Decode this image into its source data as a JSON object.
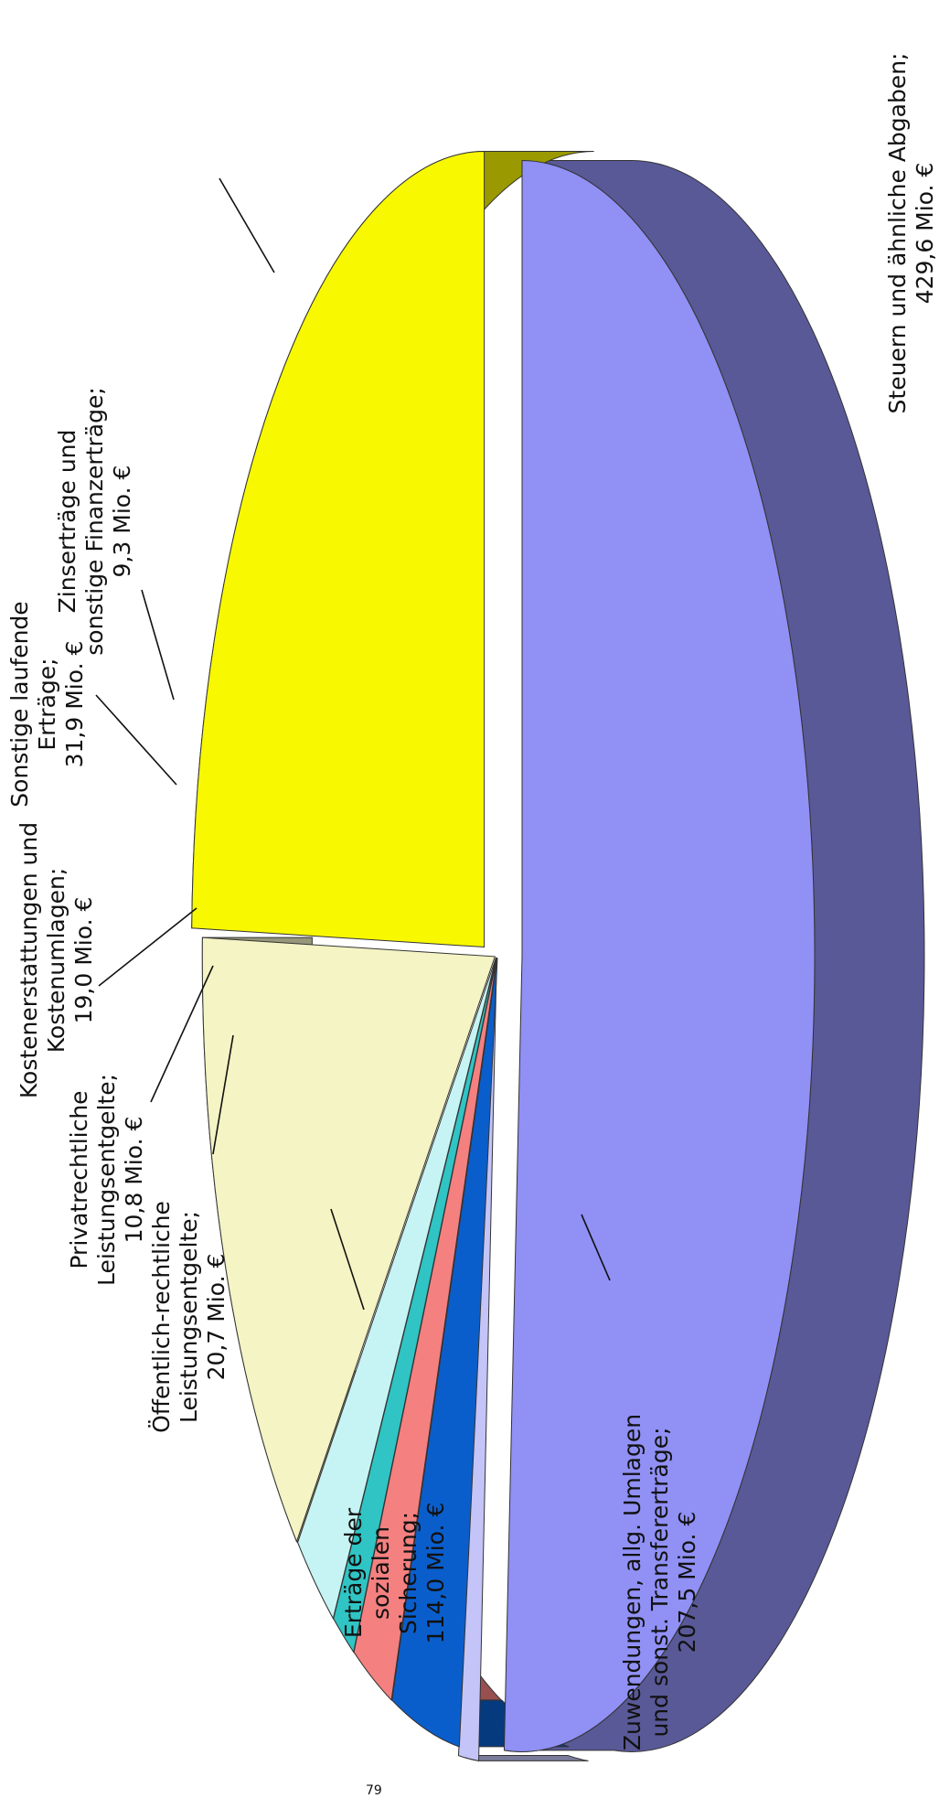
{
  "chart_data": {
    "type": "pie",
    "title": "",
    "unit": "Mio. €",
    "slices": [
      {
        "lines": [
          "Steuern und ähnliche Abgaben;",
          "429,6 Mio. €"
        ],
        "value": 429.6,
        "color": "#9090f5"
      },
      {
        "lines": [
          "Zinserträge und",
          "sonstige Finanzerträge;",
          "9,3 Mio. €"
        ],
        "value": 9.3,
        "color": "#c4c4f8"
      },
      {
        "lines": [
          "Sonstige laufende",
          "Erträge;",
          "31,9 Mio. €"
        ],
        "value": 31.9,
        "color": "#0a5ecc"
      },
      {
        "lines": [
          "Kostenerstattungen und",
          "Kostenumlagen;",
          "19,0 Mio. €"
        ],
        "value": 19.0,
        "color": "#f48080"
      },
      {
        "lines": [
          "Privatrechtliche",
          "Leistungsentgelte;",
          "10,8 Mio. €"
        ],
        "value": 10.8,
        "color": "#30c4c4"
      },
      {
        "lines": [
          "Öffentlich-rechtliche",
          "Leistungsentgelte;",
          "20,7 Mio. €"
        ],
        "value": 20.7,
        "color": "#c6f4f4"
      },
      {
        "lines": [
          "Erträge der",
          "sozialen",
          "Sicherung;",
          "114,0 Mio. €"
        ],
        "value": 114.0,
        "color": "#f4f4c4"
      },
      {
        "lines": [
          "Zuwendungen, allg. Umlagen",
          "und sonst. Transfererträge;",
          "207,5 Mio. €"
        ],
        "value": 207.5,
        "color": "#f8f800"
      }
    ]
  },
  "page_number": "79"
}
